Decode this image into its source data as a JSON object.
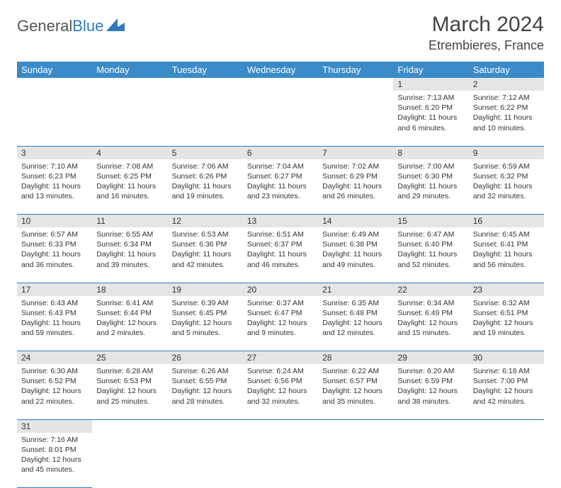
{
  "logo": {
    "word1": "General",
    "word2": "Blue"
  },
  "title": "March 2024",
  "location": "Etrembieres, France",
  "colors": {
    "header_bg": "#3b8bc8",
    "header_text": "#ffffff",
    "daynum_bg": "#e5e5e5",
    "border": "#2f7bbf",
    "text": "#333333",
    "logo_blue": "#2f7bbf"
  },
  "weekdays": [
    "Sunday",
    "Monday",
    "Tuesday",
    "Wednesday",
    "Thursday",
    "Friday",
    "Saturday"
  ],
  "weeks": [
    [
      null,
      null,
      null,
      null,
      null,
      {
        "n": "1",
        "sr": "Sunrise: 7:13 AM",
        "ss": "Sunset: 6:20 PM",
        "dl": "Daylight: 11 hours and 6 minutes."
      },
      {
        "n": "2",
        "sr": "Sunrise: 7:12 AM",
        "ss": "Sunset: 6:22 PM",
        "dl": "Daylight: 11 hours and 10 minutes."
      }
    ],
    [
      {
        "n": "3",
        "sr": "Sunrise: 7:10 AM",
        "ss": "Sunset: 6:23 PM",
        "dl": "Daylight: 11 hours and 13 minutes."
      },
      {
        "n": "4",
        "sr": "Sunrise: 7:08 AM",
        "ss": "Sunset: 6:25 PM",
        "dl": "Daylight: 11 hours and 16 minutes."
      },
      {
        "n": "5",
        "sr": "Sunrise: 7:06 AM",
        "ss": "Sunset: 6:26 PM",
        "dl": "Daylight: 11 hours and 19 minutes."
      },
      {
        "n": "6",
        "sr": "Sunrise: 7:04 AM",
        "ss": "Sunset: 6:27 PM",
        "dl": "Daylight: 11 hours and 23 minutes."
      },
      {
        "n": "7",
        "sr": "Sunrise: 7:02 AM",
        "ss": "Sunset: 6:29 PM",
        "dl": "Daylight: 11 hours and 26 minutes."
      },
      {
        "n": "8",
        "sr": "Sunrise: 7:00 AM",
        "ss": "Sunset: 6:30 PM",
        "dl": "Daylight: 11 hours and 29 minutes."
      },
      {
        "n": "9",
        "sr": "Sunrise: 6:59 AM",
        "ss": "Sunset: 6:32 PM",
        "dl": "Daylight: 11 hours and 32 minutes."
      }
    ],
    [
      {
        "n": "10",
        "sr": "Sunrise: 6:57 AM",
        "ss": "Sunset: 6:33 PM",
        "dl": "Daylight: 11 hours and 36 minutes."
      },
      {
        "n": "11",
        "sr": "Sunrise: 6:55 AM",
        "ss": "Sunset: 6:34 PM",
        "dl": "Daylight: 11 hours and 39 minutes."
      },
      {
        "n": "12",
        "sr": "Sunrise: 6:53 AM",
        "ss": "Sunset: 6:36 PM",
        "dl": "Daylight: 11 hours and 42 minutes."
      },
      {
        "n": "13",
        "sr": "Sunrise: 6:51 AM",
        "ss": "Sunset: 6:37 PM",
        "dl": "Daylight: 11 hours and 46 minutes."
      },
      {
        "n": "14",
        "sr": "Sunrise: 6:49 AM",
        "ss": "Sunset: 6:38 PM",
        "dl": "Daylight: 11 hours and 49 minutes."
      },
      {
        "n": "15",
        "sr": "Sunrise: 6:47 AM",
        "ss": "Sunset: 6:40 PM",
        "dl": "Daylight: 11 hours and 52 minutes."
      },
      {
        "n": "16",
        "sr": "Sunrise: 6:45 AM",
        "ss": "Sunset: 6:41 PM",
        "dl": "Daylight: 11 hours and 56 minutes."
      }
    ],
    [
      {
        "n": "17",
        "sr": "Sunrise: 6:43 AM",
        "ss": "Sunset: 6:43 PM",
        "dl": "Daylight: 11 hours and 59 minutes."
      },
      {
        "n": "18",
        "sr": "Sunrise: 6:41 AM",
        "ss": "Sunset: 6:44 PM",
        "dl": "Daylight: 12 hours and 2 minutes."
      },
      {
        "n": "19",
        "sr": "Sunrise: 6:39 AM",
        "ss": "Sunset: 6:45 PM",
        "dl": "Daylight: 12 hours and 5 minutes."
      },
      {
        "n": "20",
        "sr": "Sunrise: 6:37 AM",
        "ss": "Sunset: 6:47 PM",
        "dl": "Daylight: 12 hours and 9 minutes."
      },
      {
        "n": "21",
        "sr": "Sunrise: 6:35 AM",
        "ss": "Sunset: 6:48 PM",
        "dl": "Daylight: 12 hours and 12 minutes."
      },
      {
        "n": "22",
        "sr": "Sunrise: 6:34 AM",
        "ss": "Sunset: 6:49 PM",
        "dl": "Daylight: 12 hours and 15 minutes."
      },
      {
        "n": "23",
        "sr": "Sunrise: 6:32 AM",
        "ss": "Sunset: 6:51 PM",
        "dl": "Daylight: 12 hours and 19 minutes."
      }
    ],
    [
      {
        "n": "24",
        "sr": "Sunrise: 6:30 AM",
        "ss": "Sunset: 6:52 PM",
        "dl": "Daylight: 12 hours and 22 minutes."
      },
      {
        "n": "25",
        "sr": "Sunrise: 6:28 AM",
        "ss": "Sunset: 6:53 PM",
        "dl": "Daylight: 12 hours and 25 minutes."
      },
      {
        "n": "26",
        "sr": "Sunrise: 6:26 AM",
        "ss": "Sunset: 6:55 PM",
        "dl": "Daylight: 12 hours and 28 minutes."
      },
      {
        "n": "27",
        "sr": "Sunrise: 6:24 AM",
        "ss": "Sunset: 6:56 PM",
        "dl": "Daylight: 12 hours and 32 minutes."
      },
      {
        "n": "28",
        "sr": "Sunrise: 6:22 AM",
        "ss": "Sunset: 6:57 PM",
        "dl": "Daylight: 12 hours and 35 minutes."
      },
      {
        "n": "29",
        "sr": "Sunrise: 6:20 AM",
        "ss": "Sunset: 6:59 PM",
        "dl": "Daylight: 12 hours and 38 minutes."
      },
      {
        "n": "30",
        "sr": "Sunrise: 6:18 AM",
        "ss": "Sunset: 7:00 PM",
        "dl": "Daylight: 12 hours and 42 minutes."
      }
    ],
    [
      {
        "n": "31",
        "sr": "Sunrise: 7:16 AM",
        "ss": "Sunset: 8:01 PM",
        "dl": "Daylight: 12 hours and 45 minutes."
      },
      null,
      null,
      null,
      null,
      null,
      null
    ]
  ]
}
